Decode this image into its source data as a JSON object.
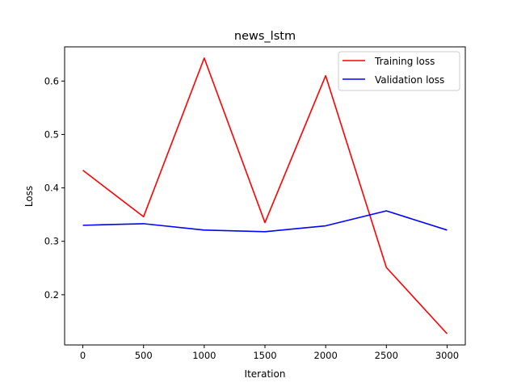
{
  "chart_data": {
    "type": "line",
    "title": "news_lstm",
    "xlabel": "Iteration",
    "ylabel": "Loss",
    "xlim": [
      -150,
      3150
    ],
    "ylim": [
      0.106,
      0.664
    ],
    "xticks": [
      0,
      500,
      1000,
      1500,
      2000,
      2500,
      3000
    ],
    "yticks": [
      0.2,
      0.3,
      0.4,
      0.5,
      0.6
    ],
    "grid": false,
    "legend_position": "top-right",
    "x": [
      0,
      500,
      1000,
      1500,
      2000,
      2500,
      3000
    ],
    "series": [
      {
        "name": "Training loss",
        "color": "#ff0000",
        "values": [
          0.433,
          0.346,
          0.643,
          0.335,
          0.61,
          0.251,
          0.127
        ]
      },
      {
        "name": "Validation loss",
        "color": "#0000ff",
        "values": [
          0.33,
          0.333,
          0.321,
          0.318,
          0.329,
          0.357,
          0.321
        ]
      }
    ]
  }
}
